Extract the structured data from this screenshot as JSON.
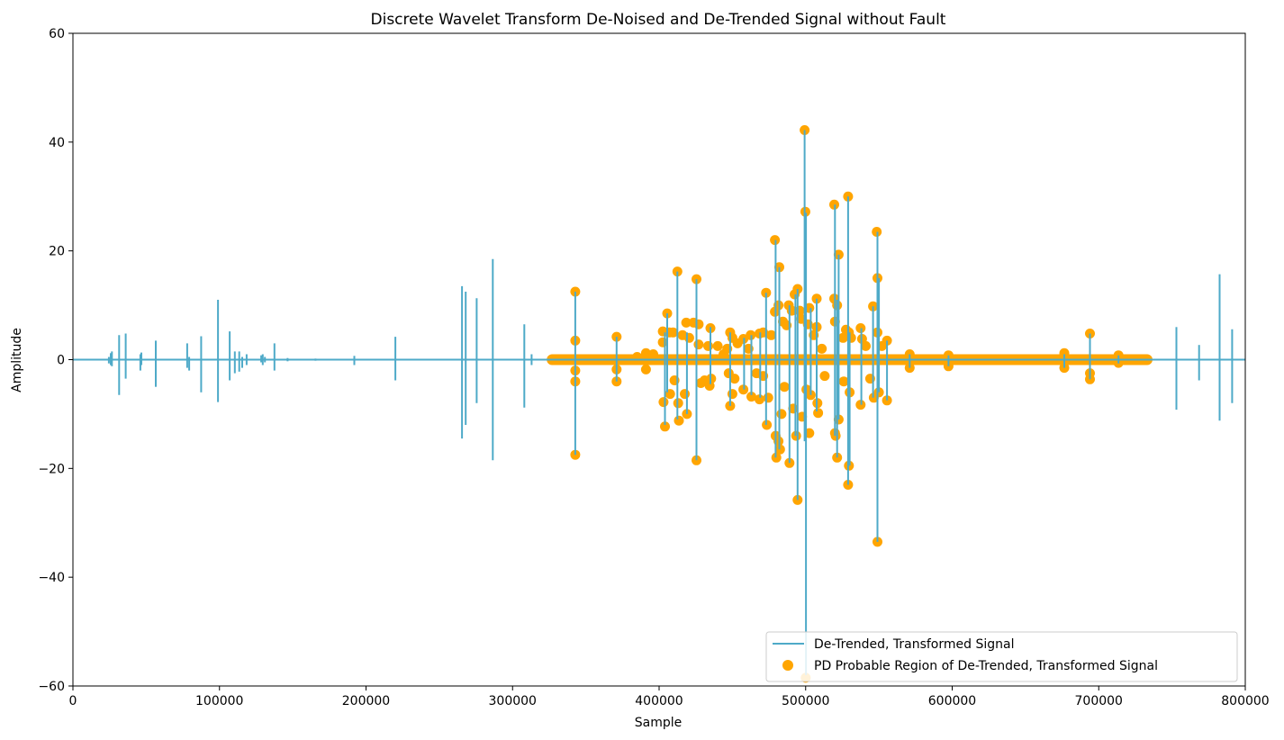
{
  "chart_data": {
    "type": "line",
    "title": "Discrete Wavelet Transform De-Noised and De-Trended Signal without Fault",
    "xlabel": "Sample",
    "ylabel": "Amplitude",
    "xlim": [
      0,
      800000
    ],
    "ylim": [
      -60,
      60
    ],
    "x_ticks": [
      0,
      100000,
      200000,
      300000,
      400000,
      500000,
      600000,
      700000,
      800000
    ],
    "x_tick_labels": [
      "0",
      "100000",
      "200000",
      "300000",
      "400000",
      "500000",
      "600000",
      "700000",
      "800000"
    ],
    "y_ticks": [
      -60,
      -40,
      -20,
      0,
      20,
      40,
      60
    ],
    "y_tick_labels": [
      "−60",
      "−40",
      "−20",
      "0",
      "20",
      "40",
      "60"
    ],
    "grid": false,
    "legend_position": "bottom-right",
    "colors": {
      "signal": "#4eaac8",
      "probable": "#ffa500"
    },
    "series": [
      {
        "name": "De-Trended, Transformed Signal",
        "kind": "line",
        "spikes": [
          [
            24500,
            0.5,
            -0.7
          ],
          [
            25800,
            1.2,
            -1.0
          ],
          [
            26600,
            1.5,
            -1.2
          ],
          [
            31500,
            4.5,
            -6.5
          ],
          [
            36000,
            4.8,
            -3.5
          ],
          [
            46000,
            1.0,
            -2.0
          ],
          [
            46700,
            1.3,
            -1.0
          ],
          [
            56500,
            3.5,
            -5.0
          ],
          [
            78000,
            3.0,
            -1.5
          ],
          [
            79300,
            0.5,
            -2.0
          ],
          [
            87500,
            4.3,
            -6.0
          ],
          [
            99000,
            11.0,
            -7.8
          ],
          [
            107000,
            5.2,
            -3.8
          ],
          [
            110500,
            1.5,
            -2.5
          ],
          [
            113500,
            1.5,
            -2.2
          ],
          [
            115500,
            0.5,
            -1.5
          ],
          [
            118500,
            1.0,
            -1.0
          ],
          [
            128500,
            0.8,
            -0.5
          ],
          [
            129500,
            1.0,
            -1.0
          ],
          [
            131000,
            0.5,
            -0.5
          ],
          [
            137500,
            3.0,
            -2.0
          ],
          [
            146500,
            0.3,
            -0.3
          ],
          [
            165500,
            0.2,
            -0.2
          ],
          [
            192000,
            0.7,
            -1.0
          ],
          [
            220000,
            4.2,
            -3.8
          ],
          [
            265500,
            13.5,
            -14.5
          ],
          [
            268000,
            12.5,
            -12.0
          ],
          [
            275500,
            11.3,
            -8.0
          ],
          [
            286500,
            18.5,
            -18.5
          ],
          [
            308000,
            6.5,
            -8.8
          ],
          [
            313000,
            1.0,
            -1.0
          ],
          [
            342800,
            12.5,
            -17.5
          ],
          [
            371000,
            4.2,
            -4.0
          ],
          [
            404000,
            5.0,
            -12.0
          ],
          [
            405500,
            8.5,
            -6.0
          ],
          [
            412500,
            16.2,
            -11.0
          ],
          [
            419000,
            5.0,
            -10.0
          ],
          [
            425500,
            14.8,
            -18.5
          ],
          [
            435000,
            6.0,
            -4.5
          ],
          [
            448500,
            5.0,
            -8.5
          ],
          [
            458000,
            4.0,
            -5.5
          ],
          [
            463000,
            4.5,
            -6.5
          ],
          [
            469000,
            5.0,
            -7.0
          ],
          [
            473000,
            12.3,
            -12.0
          ],
          [
            479500,
            22.0,
            -18.0
          ],
          [
            482000,
            17.0,
            -16.5
          ],
          [
            489000,
            10.0,
            -19.0
          ],
          [
            493000,
            12.0,
            -14.0
          ],
          [
            494500,
            13.0,
            -25.8
          ],
          [
            499300,
            42.2,
            -15.0
          ],
          [
            500200,
            27.0,
            -58.0
          ],
          [
            503500,
            9.5,
            -6.5
          ],
          [
            507500,
            11.2,
            -9.5
          ],
          [
            520000,
            28.5,
            -14.0
          ],
          [
            521500,
            11.0,
            -18.0
          ],
          [
            522500,
            19.3,
            -11.0
          ],
          [
            529000,
            30.0,
            -23.0
          ],
          [
            530000,
            5.0,
            -19.5
          ],
          [
            538000,
            5.8,
            -8.3
          ],
          [
            546000,
            9.8,
            -7.0
          ],
          [
            549000,
            23.5,
            -33.5
          ],
          [
            550000,
            15.0,
            -6.0
          ],
          [
            555500,
            3.5,
            -7.5
          ],
          [
            571000,
            1.0,
            -1.5
          ],
          [
            597500,
            0.8,
            -1.2
          ],
          [
            676500,
            1.0,
            -1.5
          ],
          [
            694000,
            4.8,
            -3.6
          ],
          [
            713500,
            0.8,
            -0.7
          ],
          [
            753000,
            6.0,
            -9.2
          ],
          [
            768500,
            2.7,
            -3.8
          ],
          [
            782500,
            15.7,
            -11.2
          ],
          [
            791000,
            5.6,
            -8.0
          ]
        ]
      },
      {
        "name": "PD Probable Region of De-Trended, Transformed Signal",
        "kind": "scatter",
        "x_range": [
          327000,
          733000
        ],
        "points": [
          [
            342800,
            12.5
          ],
          [
            342800,
            3.5
          ],
          [
            342800,
            -2.0
          ],
          [
            342800,
            -4.0
          ],
          [
            342800,
            -17.5
          ],
          [
            371000,
            4.2
          ],
          [
            371000,
            -1.8
          ],
          [
            371000,
            -4.0
          ],
          [
            385000,
            0.5
          ],
          [
            391000,
            1.2
          ],
          [
            391000,
            -1.8
          ],
          [
            396000,
            1.0
          ],
          [
            402500,
            5.2
          ],
          [
            402500,
            3.2
          ],
          [
            403000,
            -7.8
          ],
          [
            404000,
            -12.3
          ],
          [
            405500,
            8.5
          ],
          [
            407000,
            5.0
          ],
          [
            407500,
            -6.3
          ],
          [
            409500,
            5.0
          ],
          [
            410500,
            -3.8
          ],
          [
            412500,
            16.2
          ],
          [
            413000,
            -8.0
          ],
          [
            413500,
            -11.2
          ],
          [
            416000,
            4.5
          ],
          [
            417500,
            -6.3
          ],
          [
            418500,
            6.8
          ],
          [
            419000,
            -10.0
          ],
          [
            420500,
            4.0
          ],
          [
            423500,
            6.8
          ],
          [
            425500,
            14.8
          ],
          [
            425500,
            -18.5
          ],
          [
            427000,
            6.5
          ],
          [
            427000,
            2.8
          ],
          [
            428500,
            -4.3
          ],
          [
            431000,
            -3.8
          ],
          [
            433500,
            2.5
          ],
          [
            434500,
            -4.8
          ],
          [
            435000,
            5.8
          ],
          [
            435500,
            -3.5
          ],
          [
            440000,
            2.5
          ],
          [
            444000,
            1.0
          ],
          [
            446500,
            2.0
          ],
          [
            447500,
            -2.5
          ],
          [
            448500,
            5.0
          ],
          [
            448500,
            -8.5
          ],
          [
            450000,
            4.0
          ],
          [
            450000,
            -6.3
          ],
          [
            451500,
            -3.5
          ],
          [
            453500,
            3.0
          ],
          [
            457500,
            3.8
          ],
          [
            457500,
            -5.5
          ],
          [
            461000,
            2.0
          ],
          [
            462500,
            4.5
          ],
          [
            463000,
            -6.8
          ],
          [
            466500,
            -2.5
          ],
          [
            468500,
            4.8
          ],
          [
            468500,
            -7.3
          ],
          [
            471000,
            5.0
          ],
          [
            471000,
            -3.0
          ],
          [
            473000,
            12.3
          ],
          [
            473500,
            -12.0
          ],
          [
            474500,
            -7.0
          ],
          [
            476500,
            4.5
          ],
          [
            479000,
            22.0
          ],
          [
            479000,
            8.8
          ],
          [
            479500,
            -14.0
          ],
          [
            480000,
            -18.0
          ],
          [
            481500,
            10.0
          ],
          [
            481500,
            -15.0
          ],
          [
            482000,
            17.0
          ],
          [
            482500,
            -16.5
          ],
          [
            483500,
            -10.0
          ],
          [
            484500,
            7.0
          ],
          [
            485500,
            -5.0
          ],
          [
            487000,
            6.3
          ],
          [
            488500,
            10.0
          ],
          [
            489000,
            -19.0
          ],
          [
            490500,
            9.0
          ],
          [
            491500,
            -9.0
          ],
          [
            492500,
            12.0
          ],
          [
            493500,
            -14.0
          ],
          [
            494500,
            13.0
          ],
          [
            494500,
            -25.8
          ],
          [
            496000,
            9.0
          ],
          [
            497000,
            7.5
          ],
          [
            497500,
            -10.5
          ],
          [
            499300,
            42.2
          ],
          [
            499800,
            27.2
          ],
          [
            500000,
            -58.5
          ],
          [
            500500,
            -5.5
          ],
          [
            501500,
            6.5
          ],
          [
            502500,
            9.5
          ],
          [
            502500,
            -13.5
          ],
          [
            503500,
            -6.5
          ],
          [
            505500,
            4.5
          ],
          [
            507500,
            11.2
          ],
          [
            507500,
            6.0
          ],
          [
            508000,
            -8.0
          ],
          [
            508500,
            -9.8
          ],
          [
            511000,
            2.0
          ],
          [
            513000,
            -3.0
          ],
          [
            519500,
            28.5
          ],
          [
            519500,
            11.2
          ],
          [
            520000,
            7.0
          ],
          [
            520000,
            -13.5
          ],
          [
            520500,
            -14.0
          ],
          [
            521500,
            10.0
          ],
          [
            521500,
            -18.0
          ],
          [
            522500,
            19.3
          ],
          [
            522500,
            -11.0
          ],
          [
            525500,
            4.0
          ],
          [
            526000,
            -4.0
          ],
          [
            527500,
            5.5
          ],
          [
            529000,
            30.0
          ],
          [
            529000,
            -23.0
          ],
          [
            529500,
            5.0
          ],
          [
            529500,
            -19.5
          ],
          [
            530000,
            -6.0
          ],
          [
            531000,
            4.0
          ],
          [
            537500,
            5.8
          ],
          [
            537500,
            -8.3
          ],
          [
            538500,
            3.8
          ],
          [
            541000,
            2.5
          ],
          [
            544000,
            -3.5
          ],
          [
            546000,
            9.8
          ],
          [
            546500,
            -7.0
          ],
          [
            548500,
            23.5
          ],
          [
            549000,
            15.0
          ],
          [
            549000,
            5.0
          ],
          [
            549000,
            -33.5
          ],
          [
            550000,
            -6.0
          ],
          [
            552000,
            2.5
          ],
          [
            555500,
            3.5
          ],
          [
            555500,
            -7.5
          ],
          [
            571000,
            1.0
          ],
          [
            571000,
            -1.5
          ],
          [
            597500,
            0.8
          ],
          [
            597500,
            -1.2
          ],
          [
            676500,
            1.2
          ],
          [
            676500,
            -1.5
          ],
          [
            694000,
            4.8
          ],
          [
            694000,
            -2.5
          ],
          [
            694000,
            -3.6
          ],
          [
            713500,
            0.8
          ],
          [
            713500,
            -0.6
          ]
        ]
      }
    ]
  }
}
